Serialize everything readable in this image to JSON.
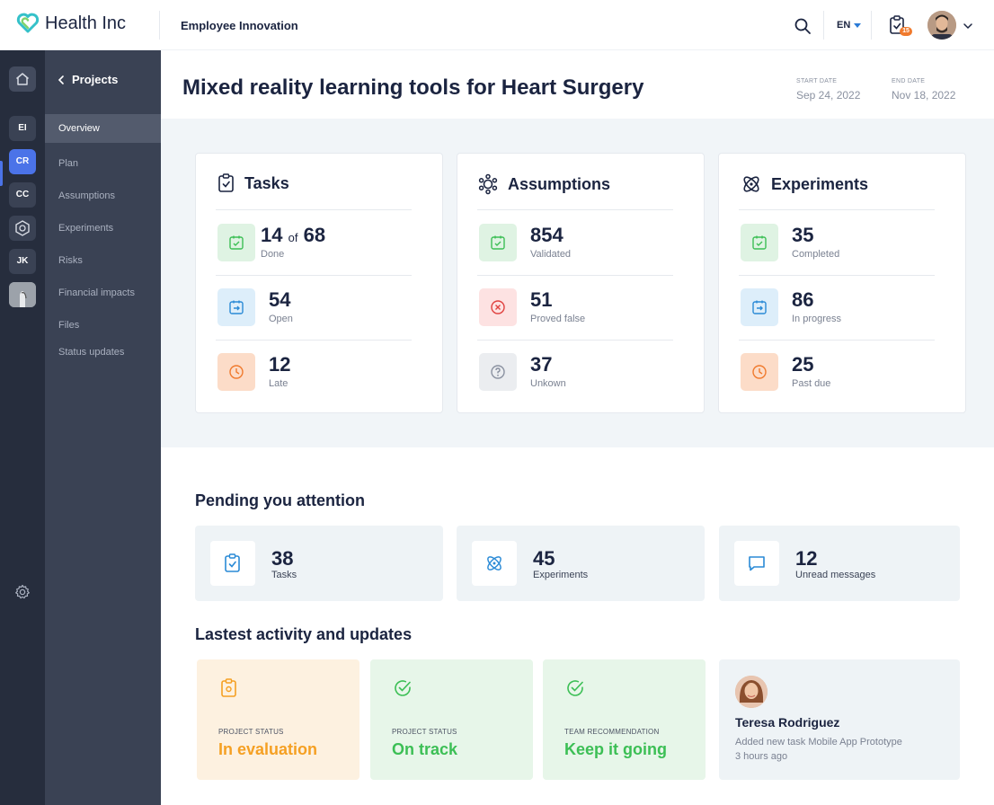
{
  "header": {
    "brand": "Health Inc",
    "app_name": "Employee Innovation",
    "language": "EN",
    "notification_count": "15",
    "icons": [
      "heart-logo-icon",
      "search-icon",
      "clipboard-icon",
      "chevron-down-icon"
    ]
  },
  "rail": {
    "items": [
      {
        "label": "EI"
      },
      {
        "label": "CR"
      },
      {
        "label": "CC"
      },
      {
        "label": "JK"
      }
    ],
    "active_color": "#4b73e8"
  },
  "nav": {
    "back_label": "Projects",
    "items": [
      {
        "label": "Overview"
      },
      {
        "label": "Plan"
      },
      {
        "label": "Assumptions"
      },
      {
        "label": "Experiments"
      },
      {
        "label": "Risks"
      },
      {
        "label": "Financial impacts"
      },
      {
        "label": "Files"
      },
      {
        "label": "Status updates"
      }
    ]
  },
  "project": {
    "title": "Mixed reality learning tools for Heart Surgery",
    "start_label": "START DATE",
    "start_date": "Sep 24, 2022",
    "end_label": "END DATE",
    "end_date": "Nov 18, 2022"
  },
  "cards": {
    "tasks": {
      "title": "Tasks",
      "rows": [
        {
          "value": "14",
          "of": "of",
          "total": "68",
          "label": "Done"
        },
        {
          "value": "54",
          "label": "Open"
        },
        {
          "value": "12",
          "label": "Late"
        }
      ]
    },
    "assumptions": {
      "title": "Assumptions",
      "rows": [
        {
          "value": "854",
          "label": "Validated"
        },
        {
          "value": "51",
          "label": "Proved false"
        },
        {
          "value": "37",
          "label": "Unkown"
        }
      ]
    },
    "experiments": {
      "title": "Experiments",
      "rows": [
        {
          "value": "35",
          "label": "Completed"
        },
        {
          "value": "86",
          "label": "In progress"
        },
        {
          "value": "25",
          "label": "Past due"
        }
      ]
    }
  },
  "pending": {
    "title": "Pending you attention",
    "items": [
      {
        "value": "38",
        "label": "Tasks"
      },
      {
        "value": "45",
        "label": "Experiments"
      },
      {
        "value": "12",
        "label": "Unread messages"
      }
    ]
  },
  "activity": {
    "title": "Lastest activity and updates",
    "items": [
      {
        "label": "PROJECT STATUS",
        "value": "In evaluation",
        "color": "#f5a023"
      },
      {
        "label": "PROJECT STATUS",
        "value": "On track",
        "color": "#3cbf55"
      },
      {
        "label": "TEAM RECOMMENDATION",
        "value": "Keep it going",
        "color": "#3cbf55"
      }
    ],
    "person": {
      "name": "Teresa Rodriguez",
      "description": "Added new task Mobile App Prototype",
      "time": "3 hours ago"
    }
  }
}
